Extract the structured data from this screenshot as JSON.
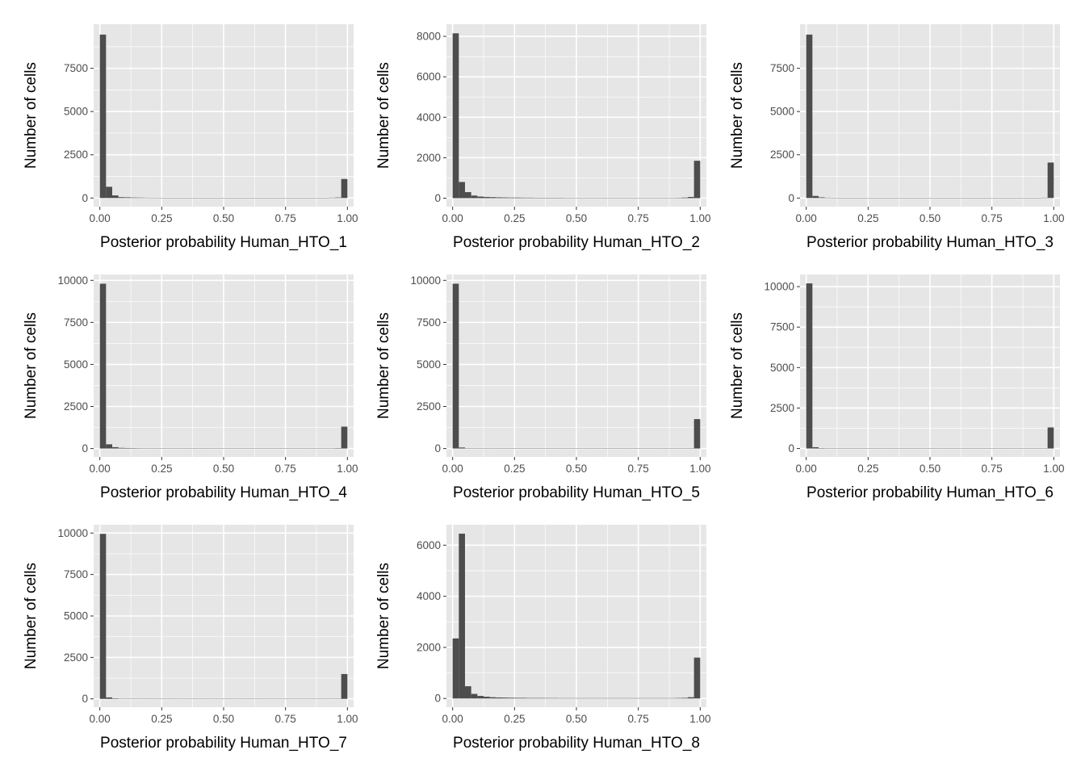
{
  "chart_data": [
    {
      "type": "bar",
      "xlabel": "Posterior probability Human_HTO_1",
      "ylabel": "Number of cells",
      "xlim": [
        -0.025,
        1.025
      ],
      "ylim": [
        -500,
        10050
      ],
      "x_ticks": [
        0,
        0.25,
        0.5,
        0.75,
        1
      ],
      "x_tick_labels": [
        "0.00",
        "0.25",
        "0.50",
        "0.75",
        "1.00"
      ],
      "y_ticks": [
        0,
        2500,
        5000,
        7500
      ],
      "y_tick_labels": [
        "0",
        "2500",
        "5000",
        "7500"
      ],
      "bins": [
        0,
        0.025,
        0.05,
        0.075,
        0.1,
        0.125,
        0.15,
        0.175,
        0.2,
        0.225,
        0.25,
        0.275,
        0.3,
        0.325,
        0.35,
        0.375,
        0.4,
        0.425,
        0.45,
        0.475,
        0.5,
        0.525,
        0.55,
        0.575,
        0.6,
        0.625,
        0.65,
        0.675,
        0.7,
        0.725,
        0.75,
        0.775,
        0.8,
        0.825,
        0.85,
        0.875,
        0.9,
        0.925,
        0.95,
        0.975,
        1
      ],
      "counts": [
        9450,
        650,
        150,
        50,
        40,
        30,
        25,
        20,
        15,
        15,
        12,
        10,
        10,
        10,
        8,
        8,
        8,
        6,
        6,
        6,
        6,
        6,
        6,
        6,
        6,
        6,
        6,
        6,
        6,
        6,
        6,
        6,
        6,
        6,
        6,
        8,
        10,
        20,
        30,
        1100
      ]
    },
    {
      "type": "bar",
      "xlabel": "Posterior probability Human_HTO_2",
      "ylabel": "Number of cells",
      "xlim": [
        -0.025,
        1.025
      ],
      "ylim": [
        -420,
        8600
      ],
      "x_ticks": [
        0,
        0.25,
        0.5,
        0.75,
        1
      ],
      "x_tick_labels": [
        "0.00",
        "0.25",
        "0.50",
        "0.75",
        "1.00"
      ],
      "y_ticks": [
        0,
        2000,
        4000,
        6000,
        8000
      ],
      "y_tick_labels": [
        "0",
        "2000",
        "4000",
        "6000",
        "8000"
      ],
      "bins": [
        0,
        0.025,
        0.05,
        0.075,
        0.1,
        0.125,
        0.15,
        0.175,
        0.2,
        0.225,
        0.25,
        0.275,
        0.3,
        0.325,
        0.35,
        0.375,
        0.4,
        0.425,
        0.45,
        0.475,
        0.5,
        0.525,
        0.55,
        0.575,
        0.6,
        0.625,
        0.65,
        0.675,
        0.7,
        0.725,
        0.75,
        0.775,
        0.8,
        0.825,
        0.85,
        0.875,
        0.9,
        0.925,
        0.95,
        0.975,
        1
      ],
      "counts": [
        8150,
        800,
        300,
        130,
        80,
        60,
        50,
        40,
        35,
        30,
        30,
        25,
        25,
        20,
        20,
        20,
        20,
        20,
        15,
        15,
        15,
        15,
        15,
        15,
        15,
        15,
        15,
        15,
        15,
        15,
        15,
        15,
        15,
        15,
        15,
        15,
        20,
        30,
        60,
        1850
      ]
    },
    {
      "type": "bar",
      "xlabel": "Posterior probability Human_HTO_3",
      "ylabel": "Number of cells",
      "xlim": [
        -0.025,
        1.025
      ],
      "ylim": [
        -500,
        10050
      ],
      "x_ticks": [
        0,
        0.25,
        0.5,
        0.75,
        1
      ],
      "x_tick_labels": [
        "0.00",
        "0.25",
        "0.50",
        "0.75",
        "1.00"
      ],
      "y_ticks": [
        0,
        2500,
        5000,
        7500
      ],
      "y_tick_labels": [
        "0",
        "2500",
        "5000",
        "7500"
      ],
      "bins": [
        0,
        0.025,
        0.05,
        0.075,
        0.1,
        0.125,
        0.15,
        0.175,
        0.2,
        0.225,
        0.25,
        0.275,
        0.3,
        0.325,
        0.35,
        0.375,
        0.4,
        0.425,
        0.45,
        0.475,
        0.5,
        0.525,
        0.55,
        0.575,
        0.6,
        0.625,
        0.65,
        0.675,
        0.7,
        0.725,
        0.75,
        0.775,
        0.8,
        0.825,
        0.85,
        0.875,
        0.9,
        0.925,
        0.95,
        0.975,
        1
      ],
      "counts": [
        9450,
        120,
        40,
        20,
        15,
        12,
        10,
        10,
        8,
        8,
        8,
        6,
        6,
        6,
        6,
        5,
        5,
        5,
        5,
        5,
        5,
        5,
        5,
        5,
        5,
        5,
        5,
        5,
        5,
        5,
        5,
        5,
        5,
        5,
        5,
        6,
        8,
        10,
        20,
        2050
      ]
    },
    {
      "type": "bar",
      "xlabel": "Posterior probability Human_HTO_4",
      "ylabel": "Number of cells",
      "xlim": [
        -0.025,
        1.025
      ],
      "ylim": [
        -500,
        10350
      ],
      "x_ticks": [
        0,
        0.25,
        0.5,
        0.75,
        1
      ],
      "x_tick_labels": [
        "0.00",
        "0.25",
        "0.50",
        "0.75",
        "1.00"
      ],
      "y_ticks": [
        0,
        2500,
        5000,
        7500,
        10000
      ],
      "y_tick_labels": [
        "0",
        "2500",
        "5000",
        "7500",
        "10000"
      ],
      "bins": [
        0,
        0.025,
        0.05,
        0.075,
        0.1,
        0.125,
        0.15,
        0.175,
        0.2,
        0.225,
        0.25,
        0.275,
        0.3,
        0.325,
        0.35,
        0.375,
        0.4,
        0.425,
        0.45,
        0.475,
        0.5,
        0.525,
        0.55,
        0.575,
        0.6,
        0.625,
        0.65,
        0.675,
        0.7,
        0.725,
        0.75,
        0.775,
        0.8,
        0.825,
        0.85,
        0.875,
        0.9,
        0.925,
        0.95,
        0.975,
        1
      ],
      "counts": [
        9800,
        250,
        80,
        40,
        30,
        25,
        20,
        15,
        15,
        12,
        10,
        10,
        10,
        8,
        8,
        8,
        8,
        8,
        6,
        6,
        6,
        6,
        6,
        6,
        6,
        6,
        6,
        6,
        6,
        6,
        6,
        6,
        6,
        6,
        6,
        8,
        10,
        15,
        25,
        1300
      ]
    },
    {
      "type": "bar",
      "xlabel": "Posterior probability Human_HTO_5",
      "ylabel": "Number of cells",
      "xlim": [
        -0.025,
        1.025
      ],
      "ylim": [
        -500,
        10350
      ],
      "x_ticks": [
        0,
        0.25,
        0.5,
        0.75,
        1
      ],
      "x_tick_labels": [
        "0.00",
        "0.25",
        "0.50",
        "0.75",
        "1.00"
      ],
      "y_ticks": [
        0,
        2500,
        5000,
        7500,
        10000
      ],
      "y_tick_labels": [
        "0",
        "2500",
        "5000",
        "7500",
        "10000"
      ],
      "bins": [
        0,
        0.025,
        0.05,
        0.075,
        0.1,
        0.125,
        0.15,
        0.175,
        0.2,
        0.225,
        0.25,
        0.275,
        0.3,
        0.325,
        0.35,
        0.375,
        0.4,
        0.425,
        0.45,
        0.475,
        0.5,
        0.525,
        0.55,
        0.575,
        0.6,
        0.625,
        0.65,
        0.675,
        0.7,
        0.725,
        0.75,
        0.775,
        0.8,
        0.825,
        0.85,
        0.875,
        0.9,
        0.925,
        0.95,
        0.975,
        1
      ],
      "counts": [
        9800,
        60,
        20,
        10,
        8,
        6,
        6,
        5,
        5,
        5,
        4,
        4,
        4,
        4,
        4,
        4,
        4,
        4,
        4,
        4,
        4,
        4,
        4,
        4,
        4,
        4,
        4,
        4,
        4,
        4,
        4,
        4,
        4,
        4,
        4,
        4,
        5,
        6,
        10,
        1750
      ]
    },
    {
      "type": "bar",
      "xlabel": "Posterior probability Human_HTO_6",
      "ylabel": "Number of cells",
      "xlim": [
        -0.025,
        1.025
      ],
      "ylim": [
        -520,
        10750
      ],
      "x_ticks": [
        0,
        0.25,
        0.5,
        0.75,
        1
      ],
      "x_tick_labels": [
        "0.00",
        "0.25",
        "0.50",
        "0.75",
        "1.00"
      ],
      "y_ticks": [
        0,
        2500,
        5000,
        7500,
        10000
      ],
      "y_tick_labels": [
        "0",
        "2500",
        "5000",
        "7500",
        "10000"
      ],
      "bins": [
        0,
        0.025,
        0.05,
        0.075,
        0.1,
        0.125,
        0.15,
        0.175,
        0.2,
        0.225,
        0.25,
        0.275,
        0.3,
        0.325,
        0.35,
        0.375,
        0.4,
        0.425,
        0.45,
        0.475,
        0.5,
        0.525,
        0.55,
        0.575,
        0.6,
        0.625,
        0.65,
        0.675,
        0.7,
        0.725,
        0.75,
        0.775,
        0.8,
        0.825,
        0.85,
        0.875,
        0.9,
        0.925,
        0.95,
        0.975,
        1
      ],
      "counts": [
        10200,
        80,
        25,
        12,
        10,
        8,
        6,
        6,
        5,
        5,
        5,
        5,
        4,
        4,
        4,
        4,
        4,
        4,
        4,
        4,
        4,
        4,
        4,
        4,
        4,
        4,
        4,
        4,
        4,
        4,
        4,
        4,
        4,
        4,
        4,
        4,
        5,
        6,
        10,
        1300
      ]
    },
    {
      "type": "bar",
      "xlabel": "Posterior probability Human_HTO_7",
      "ylabel": "Number of cells",
      "xlim": [
        -0.025,
        1.025
      ],
      "ylim": [
        -500,
        10500
      ],
      "x_ticks": [
        0,
        0.25,
        0.5,
        0.75,
        1
      ],
      "x_tick_labels": [
        "0.00",
        "0.25",
        "0.50",
        "0.75",
        "1.00"
      ],
      "y_ticks": [
        0,
        2500,
        5000,
        7500,
        10000
      ],
      "y_tick_labels": [
        "0",
        "2500",
        "5000",
        "7500",
        "10000"
      ],
      "bins": [
        0,
        0.025,
        0.05,
        0.075,
        0.1,
        0.125,
        0.15,
        0.175,
        0.2,
        0.225,
        0.25,
        0.275,
        0.3,
        0.325,
        0.35,
        0.375,
        0.4,
        0.425,
        0.45,
        0.475,
        0.5,
        0.525,
        0.55,
        0.575,
        0.6,
        0.625,
        0.65,
        0.675,
        0.7,
        0.725,
        0.75,
        0.775,
        0.8,
        0.825,
        0.85,
        0.875,
        0.9,
        0.925,
        0.95,
        0.975,
        1
      ],
      "counts": [
        9950,
        90,
        30,
        15,
        10,
        8,
        6,
        6,
        5,
        5,
        5,
        5,
        4,
        4,
        4,
        4,
        4,
        4,
        4,
        4,
        4,
        4,
        4,
        4,
        4,
        4,
        4,
        4,
        4,
        4,
        4,
        4,
        4,
        4,
        4,
        4,
        5,
        8,
        12,
        1500
      ]
    },
    {
      "type": "bar",
      "xlabel": "Posterior probability Human_HTO_8",
      "ylabel": "Number of cells",
      "xlim": [
        -0.025,
        1.025
      ],
      "ylim": [
        -340,
        6800
      ],
      "x_ticks": [
        0,
        0.25,
        0.5,
        0.75,
        1
      ],
      "x_tick_labels": [
        "0.00",
        "0.25",
        "0.50",
        "0.75",
        "1.00"
      ],
      "y_ticks": [
        0,
        2000,
        4000,
        6000
      ],
      "y_tick_labels": [
        "0",
        "2000",
        "4000",
        "6000"
      ],
      "bins": [
        0,
        0.025,
        0.05,
        0.075,
        0.1,
        0.125,
        0.15,
        0.175,
        0.2,
        0.225,
        0.25,
        0.275,
        0.3,
        0.325,
        0.35,
        0.375,
        0.4,
        0.425,
        0.45,
        0.475,
        0.5,
        0.525,
        0.55,
        0.575,
        0.6,
        0.625,
        0.65,
        0.675,
        0.7,
        0.725,
        0.75,
        0.775,
        0.8,
        0.825,
        0.85,
        0.875,
        0.9,
        0.925,
        0.95,
        0.975,
        1
      ],
      "counts": [
        2350,
        6450,
        480,
        180,
        100,
        70,
        50,
        40,
        35,
        30,
        25,
        25,
        20,
        20,
        20,
        18,
        18,
        15,
        15,
        15,
        15,
        15,
        15,
        15,
        15,
        15,
        15,
        15,
        15,
        15,
        15,
        15,
        15,
        15,
        15,
        15,
        20,
        25,
        50,
        1600
      ]
    }
  ]
}
